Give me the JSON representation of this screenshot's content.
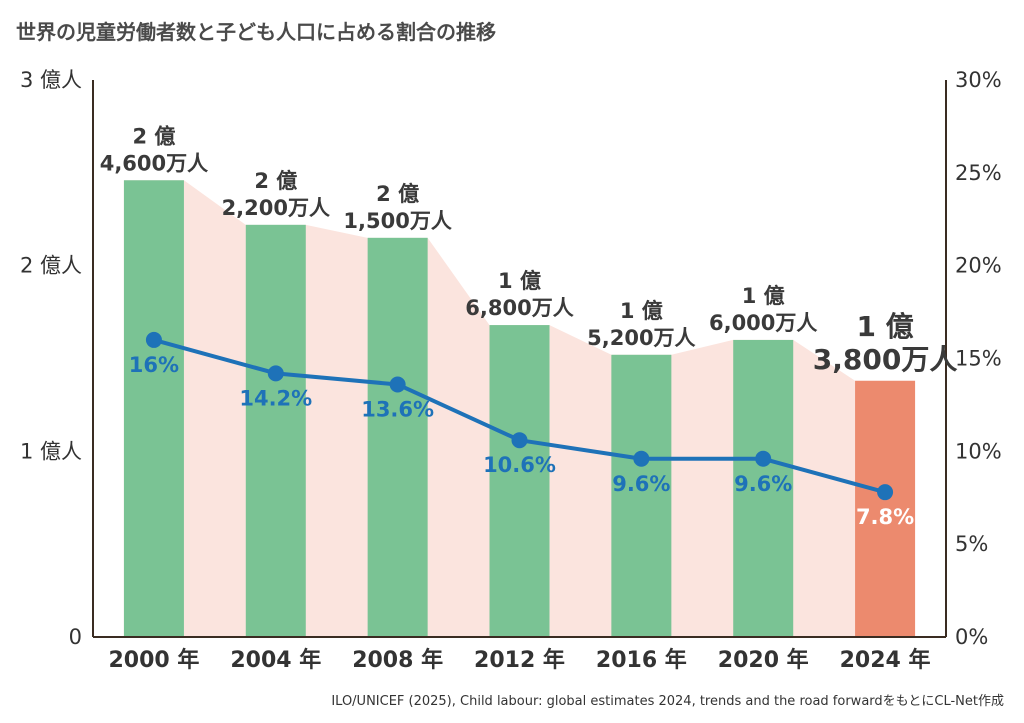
{
  "title": "世界の児童労働者数と子ども人口に占める割合の推移",
  "source": "ILO/UNICEF (2025), Child labour: global estimates 2024, trends and the road forwardをもとにCL-Net作成",
  "colors": {
    "bar": "#7ac394",
    "bar_highlight": "#ec8a6e",
    "area": "#fbe4de",
    "line": "#1e72b8",
    "axis": "#3a2c22",
    "highlight_text": "#ec8a6e",
    "pct_on_highlight": "#ffffff"
  },
  "chart_data": {
    "type": "bar",
    "title": "世界の児童労働者数と子ども人口に占める割合の推移",
    "categories": [
      "2000 年",
      "2004 年",
      "2008 年",
      "2012 年",
      "2016 年",
      "2020 年",
      "2024 年"
    ],
    "series": [
      {
        "type": "bar",
        "axis": "left",
        "unit": "億人",
        "values": [
          2.46,
          2.22,
          2.15,
          1.68,
          1.52,
          1.6,
          1.38
        ],
        "labels": [
          [
            "2 億",
            "4,600万人"
          ],
          [
            "2 億",
            "2,200万人"
          ],
          [
            "2 億",
            "1,500万人"
          ],
          [
            "1 億",
            "6,800万人"
          ],
          [
            "1 億",
            "5,200万人"
          ],
          [
            "1 億",
            "6,000万人"
          ],
          [
            "1 億",
            "3,800万人"
          ]
        ],
        "highlight_index": 6
      },
      {
        "type": "line",
        "axis": "right",
        "unit": "%",
        "values": [
          16,
          14.2,
          13.6,
          10.6,
          9.6,
          9.6,
          7.8
        ],
        "labels": [
          "16%",
          "14.2%",
          "13.6%",
          "10.6%",
          "9.6%",
          "9.6%",
          "7.8%"
        ]
      }
    ],
    "y_left": {
      "ylim": [
        0,
        3
      ],
      "ticks": [
        0,
        1,
        2,
        3
      ],
      "tick_labels": [
        "0",
        "1 億人",
        "2 億人",
        "3 億人"
      ]
    },
    "y_right": {
      "ylim": [
        0,
        30
      ],
      "ticks": [
        0,
        5,
        10,
        15,
        20,
        25,
        30
      ],
      "tick_labels": [
        "0%",
        "5%",
        "10%",
        "15%",
        "20%",
        "25%",
        "30%"
      ]
    },
    "grid": false,
    "legend": "none"
  }
}
